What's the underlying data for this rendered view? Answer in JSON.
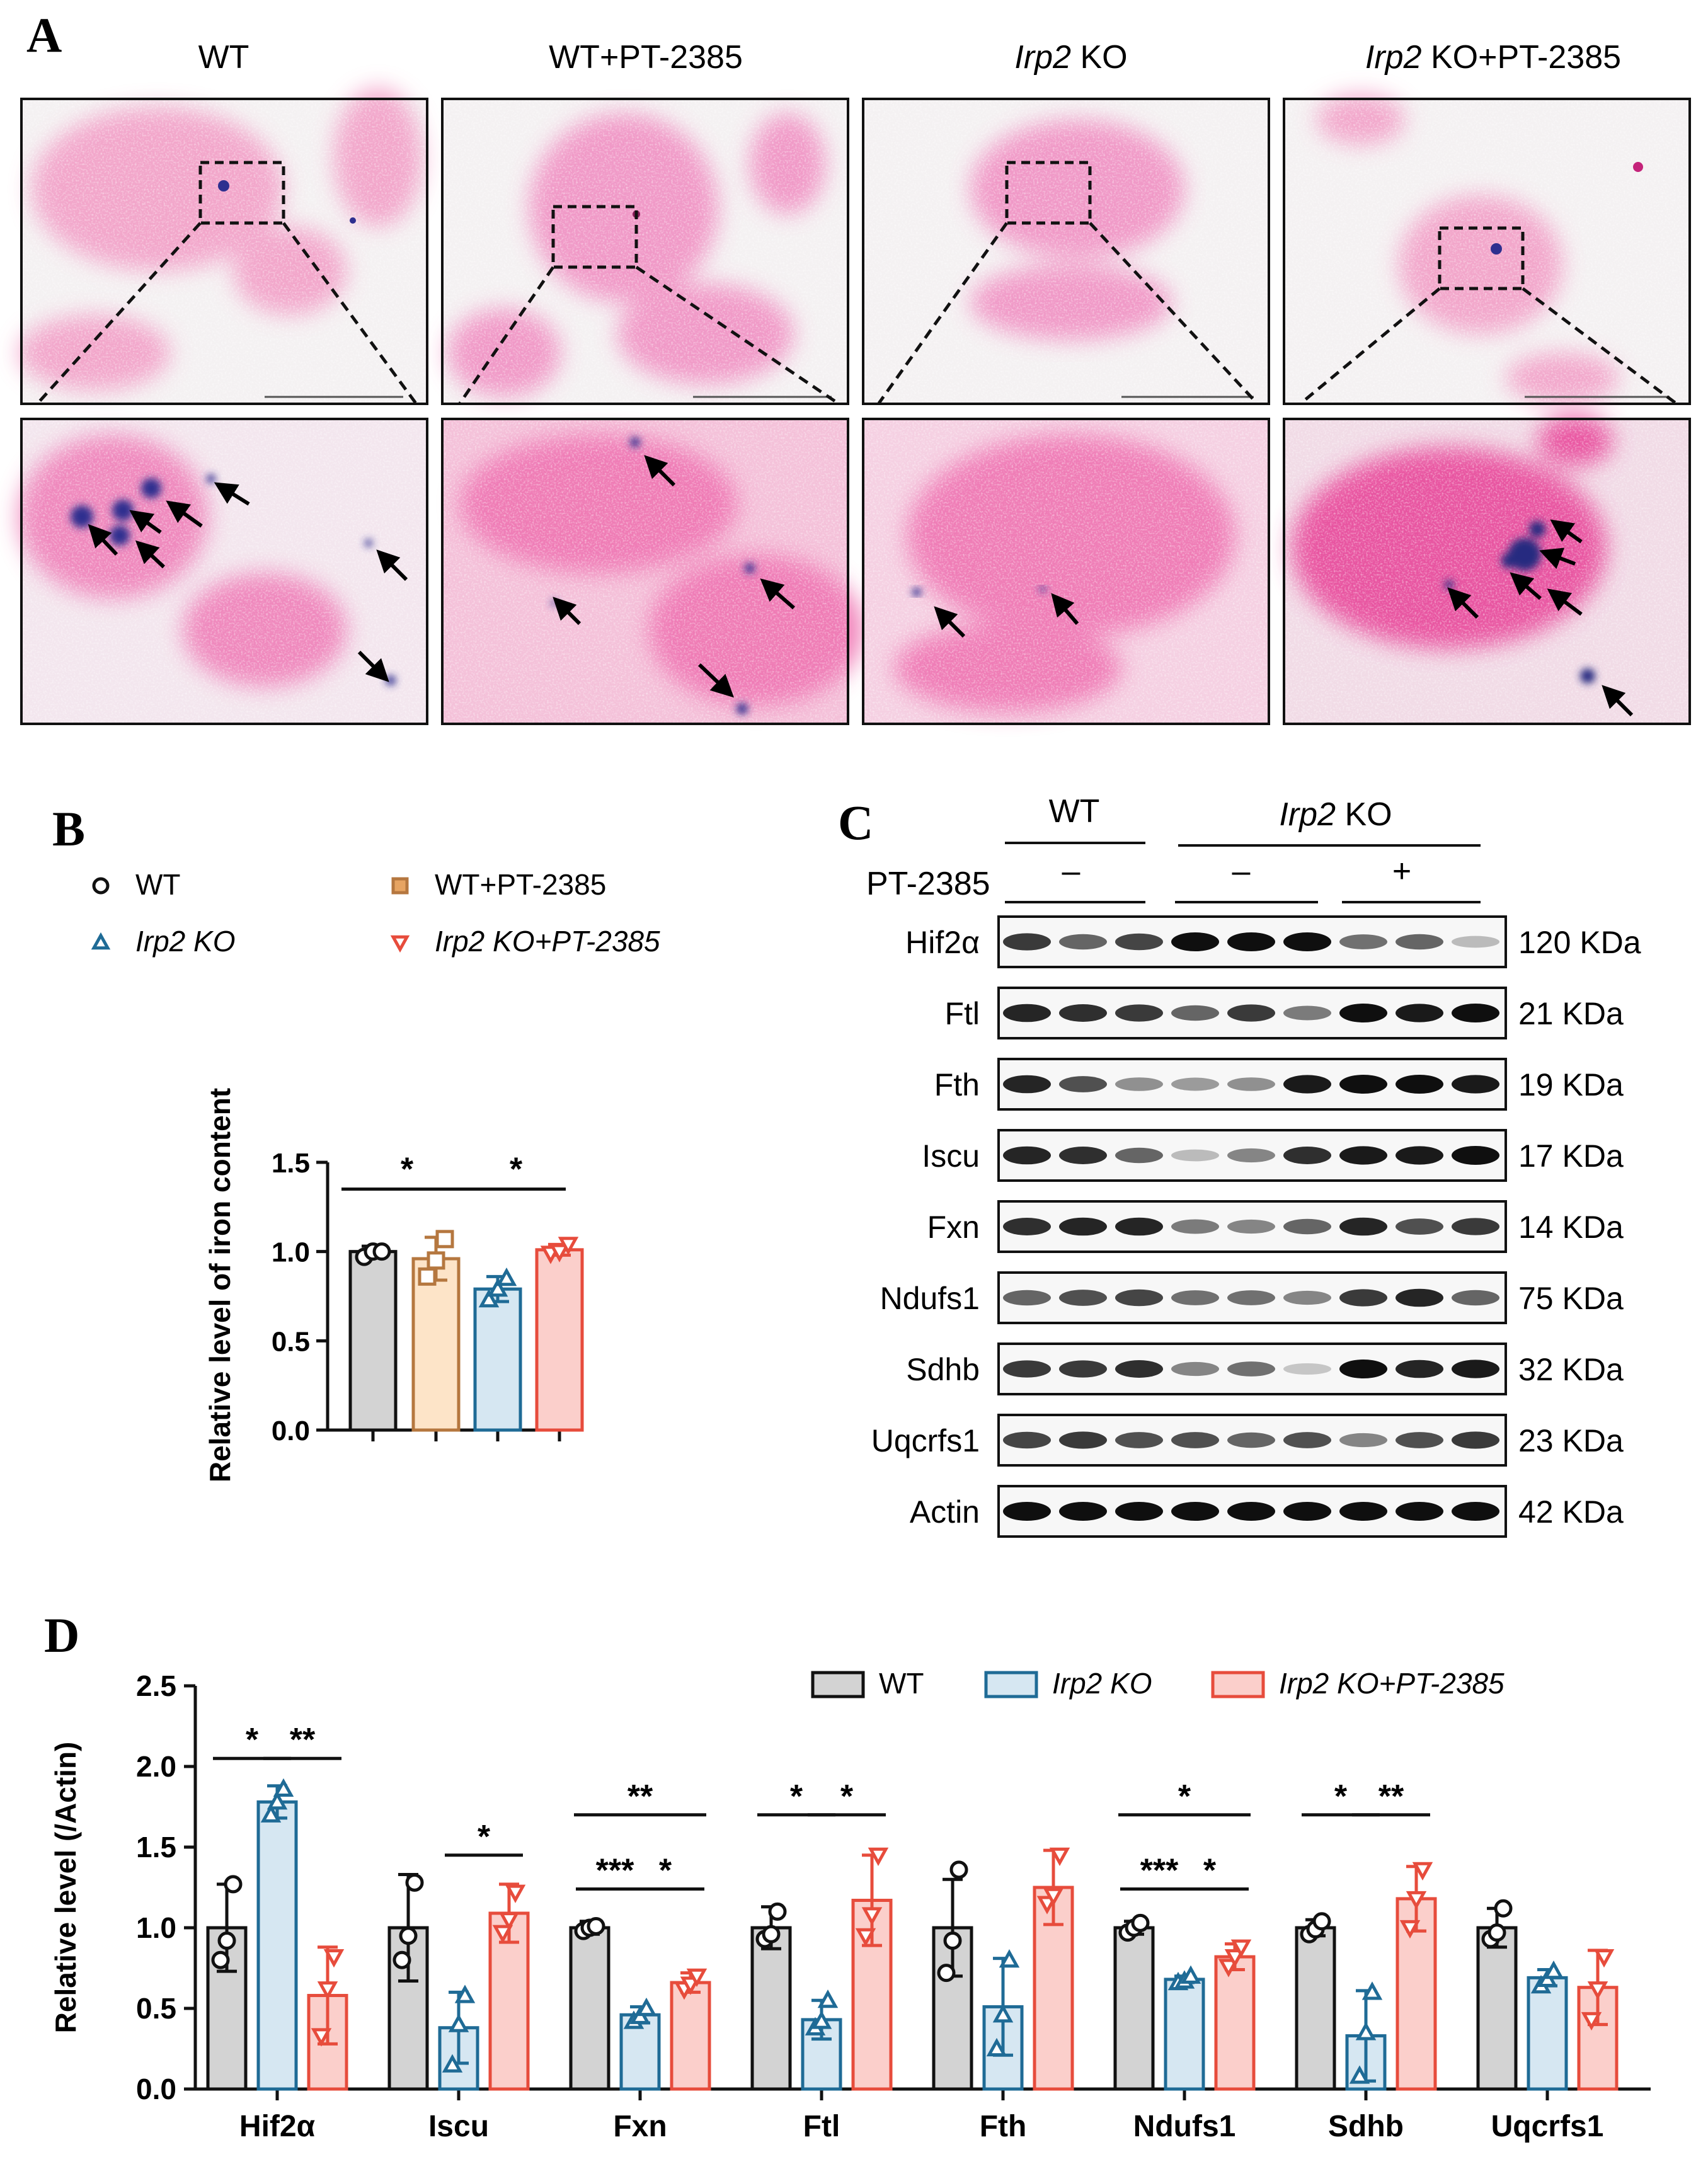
{
  "panel_a": {
    "letter": "A",
    "columns": [
      {
        "prefix": "",
        "italic": "",
        "suffix": "WT"
      },
      {
        "prefix": "",
        "italic": "",
        "suffix": "WT+PT-2385"
      },
      {
        "prefix": "",
        "italic": "Irp2",
        "suffix": " KO"
      },
      {
        "prefix": "",
        "italic": "Irp2",
        "suffix": " KO+PT-2385"
      }
    ]
  },
  "panel_c": {
    "letter": "C",
    "group_wt": "WT",
    "group_ko_italic": "Irp2",
    "group_ko_rest": " KO",
    "treatment_label": "PT-2385",
    "treatment_signs": [
      "–",
      "–",
      "+"
    ],
    "blots": [
      {
        "protein": "Hif2α",
        "size": "120 KDa",
        "intensity": [
          0.8,
          0.6,
          0.75,
          1,
          1,
          1,
          0.55,
          0.6,
          0.2
        ]
      },
      {
        "protein": "Ftl",
        "size": "21 KDa",
        "intensity": [
          0.9,
          0.85,
          0.8,
          0.6,
          0.8,
          0.5,
          1,
          0.95,
          1
        ]
      },
      {
        "protein": "Fth",
        "size": "19 KDa",
        "intensity": [
          0.9,
          0.7,
          0.4,
          0.35,
          0.4,
          0.95,
          1,
          1,
          0.95
        ]
      },
      {
        "protein": "Iscu",
        "size": "17 KDa",
        "intensity": [
          0.9,
          0.85,
          0.6,
          0.2,
          0.45,
          0.85,
          0.95,
          0.95,
          1
        ]
      },
      {
        "protein": "Fxn",
        "size": "14 KDa",
        "intensity": [
          0.85,
          0.9,
          0.9,
          0.5,
          0.45,
          0.6,
          0.9,
          0.7,
          0.8
        ]
      },
      {
        "protein": "Ndufs1",
        "size": "75 KDa",
        "intensity": [
          0.6,
          0.7,
          0.75,
          0.55,
          0.55,
          0.45,
          0.8,
          0.9,
          0.6
        ]
      },
      {
        "protein": "Sdhb",
        "size": "32 KDa",
        "intensity": [
          0.8,
          0.8,
          0.85,
          0.45,
          0.55,
          0.15,
          1,
          0.9,
          0.95
        ]
      },
      {
        "protein": "Uqcrfs1",
        "size": "23 KDa",
        "intensity": [
          0.75,
          0.8,
          0.7,
          0.7,
          0.6,
          0.7,
          0.45,
          0.7,
          0.8
        ]
      },
      {
        "protein": "Actin",
        "size": "42 KDa",
        "intensity": [
          1,
          1,
          1,
          1,
          1,
          1,
          1,
          1,
          1
        ]
      }
    ]
  },
  "colors": {
    "wt": "#d3d3d3",
    "wt_pt": "#fde4c8",
    "ko": "#d6e7f2",
    "ko_pt": "#fbcfcb",
    "wt_edge": "#111111",
    "wt_pt_edge": "#b5773f",
    "ko_edge": "#1f6b96",
    "ko_pt_edge": "#e74c3c",
    "tissue": "#ec3d9a",
    "iron": "#2d2f8f"
  },
  "chart_data": [
    {
      "id": "B",
      "letter": "B",
      "type": "bar",
      "ylabel": "Relative level of iron content",
      "ylim": [
        0,
        1.5
      ],
      "yticks": [
        "0.0",
        "0.5",
        "1.0",
        "1.5"
      ],
      "legend": [
        {
          "italic": "",
          "text": "WT"
        },
        {
          "italic": "",
          "text": "WT+PT-2385"
        },
        {
          "italic": "Irp2 KO",
          "text": ""
        },
        {
          "italic": "Irp2 KO+PT-2385",
          "text": ""
        }
      ],
      "series": [
        {
          "name": "WT",
          "mean": 1.0,
          "sd": 0.03,
          "points": [
            0.97,
            1.0,
            1.0
          ]
        },
        {
          "name": "WT+PT-2385",
          "mean": 0.96,
          "sd": 0.12,
          "points": [
            0.86,
            0.95,
            1.07
          ]
        },
        {
          "name": "Irp2 KO",
          "mean": 0.79,
          "sd": 0.07,
          "points": [
            0.73,
            0.79,
            0.85
          ]
        },
        {
          "name": "Irp2 KO+PT-2385",
          "mean": 1.01,
          "sd": 0.03,
          "points": [
            0.99,
            1.0,
            1.04
          ]
        }
      ],
      "significance": [
        {
          "from": 0,
          "to": 2,
          "label": "*"
        },
        {
          "from": 2,
          "to": 3,
          "label": "*"
        }
      ]
    },
    {
      "id": "D",
      "letter": "D",
      "type": "bar",
      "ylabel": "Relative level (/Actin)",
      "ylim": [
        0,
        2.5
      ],
      "yticks": [
        "0.0",
        "0.5",
        "1.0",
        "1.5",
        "2.0",
        "2.5"
      ],
      "legend": [
        {
          "italic": "",
          "text": "WT"
        },
        {
          "italic": "Irp2 KO",
          "text": ""
        },
        {
          "italic": "Irp2 KO+PT-2385",
          "text": ""
        }
      ],
      "categories": [
        "Hif2α",
        "Iscu",
        "Fxn",
        "Ftl",
        "Fth",
        "Ndufs1",
        "Sdhb",
        "Uqcrfs1"
      ],
      "series": [
        {
          "name": "WT",
          "means": [
            1.0,
            1.0,
            1.0,
            1.0,
            1.0,
            1.0,
            1.0,
            1.0
          ],
          "sds": [
            0.27,
            0.33,
            0.04,
            0.13,
            0.3,
            0.04,
            0.05,
            0.12
          ],
          "points": [
            [
              0.8,
              0.92,
              1.27
            ],
            [
              0.8,
              0.95,
              1.28
            ],
            [
              0.98,
              1.0,
              1.01
            ],
            [
              0.93,
              0.96,
              1.1
            ],
            [
              0.72,
              0.92,
              1.36
            ],
            [
              0.97,
              1.0,
              1.03
            ],
            [
              0.96,
              0.99,
              1.04
            ],
            [
              0.93,
              0.97,
              1.12
            ]
          ]
        },
        {
          "name": "Irp2 KO",
          "means": [
            1.78,
            0.38,
            0.46,
            0.43,
            0.51,
            0.68,
            0.33,
            0.69
          ],
          "sds": [
            0.1,
            0.22,
            0.05,
            0.12,
            0.3,
            0.02,
            0.28,
            0.05
          ],
          "points": [
            [
              1.7,
              1.78,
              1.86
            ],
            [
              0.15,
              0.4,
              0.58
            ],
            [
              0.42,
              0.45,
              0.5
            ],
            [
              0.38,
              0.42,
              0.55
            ],
            [
              0.25,
              0.46,
              0.8
            ],
            [
              0.66,
              0.67,
              0.7
            ],
            [
              0.08,
              0.35,
              0.6
            ],
            [
              0.64,
              0.68,
              0.73
            ]
          ]
        },
        {
          "name": "Irp2 KO+PT-2385",
          "means": [
            0.58,
            1.09,
            0.66,
            1.17,
            1.25,
            0.82,
            1.18,
            0.63
          ],
          "sds": [
            0.3,
            0.18,
            0.06,
            0.28,
            0.23,
            0.08,
            0.2,
            0.23
          ],
          "points": [
            [
              0.33,
              0.62,
              0.82
            ],
            [
              0.97,
              1.05,
              1.22
            ],
            [
              0.62,
              0.65,
              0.7
            ],
            [
              0.95,
              1.08,
              1.45
            ],
            [
              1.15,
              1.2,
              1.45
            ],
            [
              0.76,
              0.82,
              0.88
            ],
            [
              1.0,
              1.18,
              1.36
            ],
            [
              0.43,
              0.62,
              0.82
            ]
          ]
        }
      ],
      "significance": [
        {
          "cat": 0,
          "from": 0,
          "to": 1,
          "label": "*",
          "y": 2.05
        },
        {
          "cat": 0,
          "from": 1,
          "to": 2,
          "label": "**",
          "y": 2.05
        },
        {
          "cat": 1,
          "from": 1,
          "to": 2,
          "label": "*",
          "y": 1.45
        },
        {
          "cat": 2,
          "from": 0,
          "to": 2,
          "label": "**",
          "y": 1.7
        },
        {
          "cat": 2,
          "from": 0,
          "to": 1,
          "label": "***",
          "y": 1.24
        },
        {
          "cat": 2,
          "from": 1,
          "to": 2,
          "label": "*",
          "y": 1.24
        },
        {
          "cat": 3,
          "from": 0,
          "to": 1,
          "label": "*",
          "y": 1.7
        },
        {
          "cat": 3,
          "from": 1,
          "to": 2,
          "label": "*",
          "y": 1.7
        },
        {
          "cat": 5,
          "from": 0,
          "to": 2,
          "label": "*",
          "y": 1.7
        },
        {
          "cat": 5,
          "from": 0,
          "to": 1,
          "label": "***",
          "y": 1.24
        },
        {
          "cat": 5,
          "from": 1,
          "to": 2,
          "label": "*",
          "y": 1.24
        },
        {
          "cat": 6,
          "from": 0,
          "to": 1,
          "label": "*",
          "y": 1.7
        },
        {
          "cat": 6,
          "from": 1,
          "to": 2,
          "label": "**",
          "y": 1.7
        }
      ]
    }
  ]
}
